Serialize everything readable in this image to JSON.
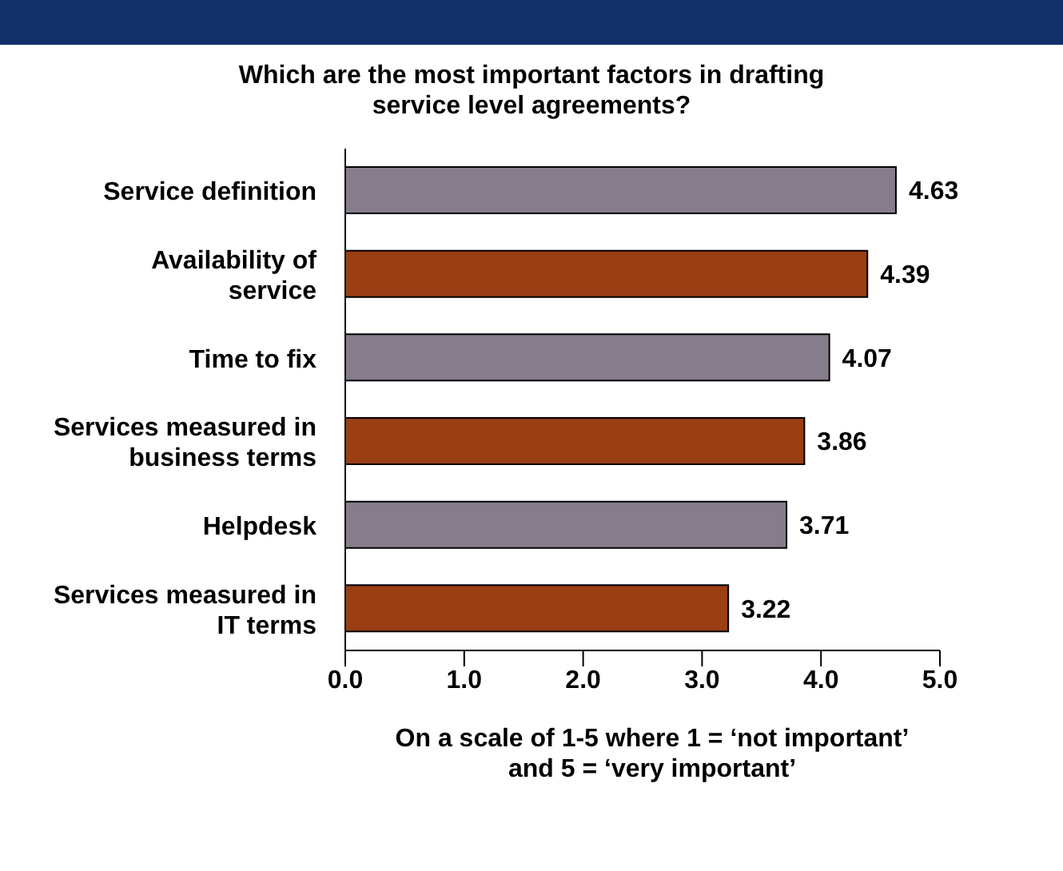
{
  "chart_data": {
    "type": "bar",
    "orientation": "horizontal",
    "title": "Which are the most important factors in drafting service level agreements?",
    "xlabel": "On a scale of 1-5 where 1 = ‘not important’ and 5 = ‘very important’",
    "categories": [
      "Service definition",
      "Availability of service",
      "Time to fix",
      "Services measured in business terms",
      "Helpdesk",
      "Services measured in IT terms"
    ],
    "values": [
      4.63,
      4.39,
      4.07,
      3.86,
      3.71,
      3.22
    ],
    "colors": [
      "#857c8c",
      "#9a3e14",
      "#857c8c",
      "#9a3e14",
      "#857c8c",
      "#9a3e14"
    ],
    "xlim": [
      0,
      5
    ],
    "xticks": [
      {
        "value": 0,
        "label": "0.0"
      },
      {
        "value": 1,
        "label": "1.0"
      },
      {
        "value": 2,
        "label": "2.0"
      },
      {
        "value": 3,
        "label": "3.0"
      },
      {
        "value": 4,
        "label": "4.0"
      },
      {
        "value": 5,
        "label": "5.0"
      }
    ],
    "data_labels": true,
    "grid": false
  }
}
